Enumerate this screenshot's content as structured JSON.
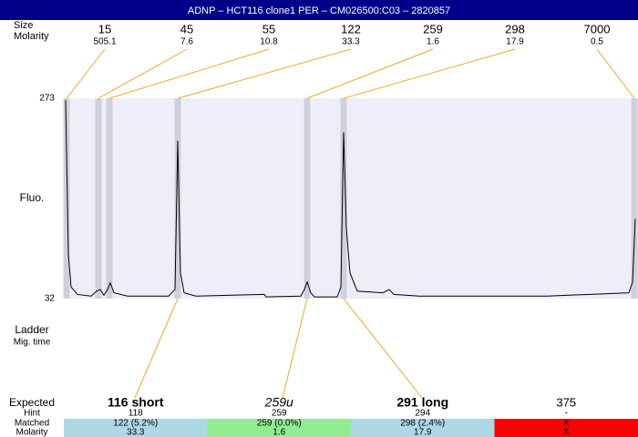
{
  "header": {
    "title": "ADNP – HCT116 clone1 PER – CM026500:C03 – 2820857"
  },
  "ladder": {
    "row_labels": [
      "Size",
      "Molarity"
    ],
    "sizes": [
      15,
      45,
      55,
      122,
      259,
      298,
      7000
    ],
    "molarities": [
      505.1,
      7.6,
      10.8,
      33.3,
      1.6,
      17.9,
      0.5
    ]
  },
  "chart_data": {
    "type": "line",
    "y_label": "Fluo.",
    "ylim": [
      32,
      273
    ],
    "yticks": [
      32,
      273
    ],
    "xlim": [
      0,
      630
    ],
    "ladder_peaks": [
      3,
      38,
      50,
      125,
      267,
      307,
      626
    ],
    "series": [
      {
        "name": "trace",
        "color": "#000000",
        "x": [
          2,
          5,
          8,
          15,
          30,
          36,
          40,
          44,
          48,
          51,
          55,
          70,
          115,
          122,
          125,
          128,
          132,
          145,
          220,
          222,
          260,
          264,
          267,
          271,
          275,
          300,
          304,
          307,
          310,
          314,
          322,
          350,
          357,
          362,
          390,
          530,
          620,
          624,
          627
        ],
        "values": [
          271,
          85,
          46,
          37,
          35,
          41,
          43,
          36,
          43,
          51,
          39,
          35,
          35,
          43,
          222,
          63,
          39,
          35,
          37,
          34,
          35,
          43,
          52,
          39,
          34,
          34,
          46,
          232,
          117,
          63,
          41,
          39,
          43,
          37,
          35,
          35,
          39,
          52,
          128
        ]
      }
    ]
  },
  "lower_labels": [
    "Ladder",
    "Mig. time"
  ],
  "results": {
    "row_labels": [
      "Expected",
      "Hint",
      "Matched",
      "Molarity"
    ],
    "columns": [
      {
        "expected": "116 short",
        "hint": "118",
        "matched": "122 (5.2%)",
        "molarity": "33.3",
        "color": "#add8e6"
      },
      {
        "expected": "259u",
        "hint": "259",
        "matched": "259 (0.0%)",
        "molarity": "1.6",
        "color": "#90ee90"
      },
      {
        "expected": "291 long",
        "hint": "294",
        "matched": "298 (2.4%)",
        "molarity": "17.9",
        "color": "#add8e6"
      },
      {
        "expected": "375",
        "hint": "-",
        "matched": "X",
        "molarity": "X",
        "color": "#ff0000"
      }
    ]
  }
}
